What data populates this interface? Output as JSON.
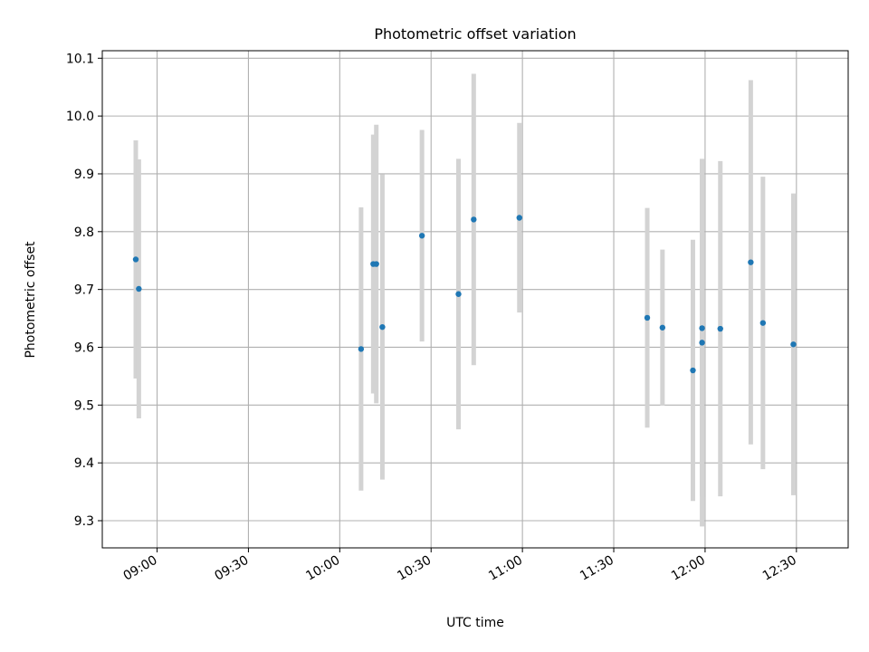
{
  "chart_data": {
    "type": "scatter",
    "title": "Photometric offset variation",
    "xlabel": "UTC time",
    "ylabel": "Photometric offset",
    "x_axis_kind": "time",
    "xlim": [
      "08:42",
      "12:47"
    ],
    "ylim": [
      9.253,
      10.113
    ],
    "xticks": [
      "09:00",
      "09:30",
      "10:00",
      "10:30",
      "11:00",
      "11:30",
      "12:00",
      "12:30"
    ],
    "yticks": [
      9.3,
      9.4,
      9.5,
      9.6,
      9.7,
      9.8,
      9.9,
      10.0,
      10.1
    ],
    "grid": true,
    "legend": "none",
    "colors": {
      "point": "#1f77b4",
      "errorbar": "#d3d3d3",
      "grid": "#b0b0b0"
    },
    "series": [
      {
        "points": [
          {
            "x": "08:53",
            "y": 9.752,
            "err": 0.206
          },
          {
            "x": "08:54",
            "y": 9.701,
            "err": 0.224
          },
          {
            "x": "10:07",
            "y": 9.597,
            "err": 0.245
          },
          {
            "x": "10:11",
            "y": 9.744,
            "err": 0.224
          },
          {
            "x": "10:12",
            "y": 9.744,
            "err": 0.241
          },
          {
            "x": "10:14",
            "y": 9.635,
            "err": 0.264
          },
          {
            "x": "10:27",
            "y": 9.793,
            "err": 0.183
          },
          {
            "x": "10:39",
            "y": 9.692,
            "err": 0.234
          },
          {
            "x": "10:44",
            "y": 9.821,
            "err": 0.252
          },
          {
            "x": "10:59",
            "y": 9.824,
            "err": 0.164
          },
          {
            "x": "11:41",
            "y": 9.651,
            "err": 0.19
          },
          {
            "x": "11:46",
            "y": 9.634,
            "err": 0.135
          },
          {
            "x": "11:56",
            "y": 9.56,
            "err": 0.226
          },
          {
            "x": "11:59",
            "y": 9.608,
            "err": 0.318
          },
          {
            "x": "11:59",
            "y": 9.633,
            "err": 0.292
          },
          {
            "x": "12:05",
            "y": 9.632,
            "err": 0.29
          },
          {
            "x": "12:15",
            "y": 9.747,
            "err": 0.315
          },
          {
            "x": "12:19",
            "y": 9.642,
            "err": 0.253
          },
          {
            "x": "12:29",
            "y": 9.605,
            "err": 0.261
          }
        ]
      }
    ]
  }
}
